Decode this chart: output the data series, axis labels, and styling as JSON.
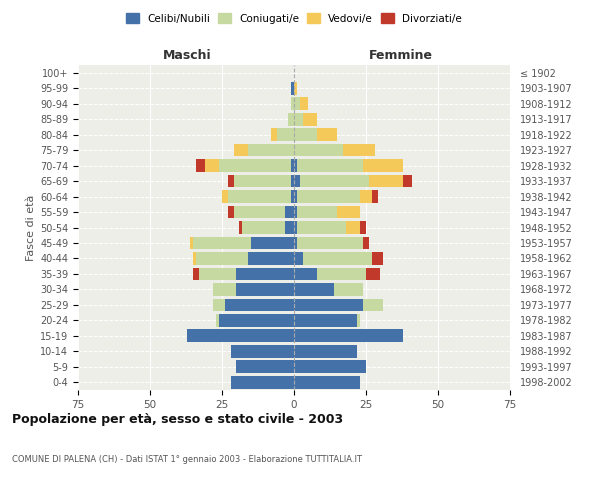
{
  "age_groups": [
    "0-4",
    "5-9",
    "10-14",
    "15-19",
    "20-24",
    "25-29",
    "30-34",
    "35-39",
    "40-44",
    "45-49",
    "50-54",
    "55-59",
    "60-64",
    "65-69",
    "70-74",
    "75-79",
    "80-84",
    "85-89",
    "90-94",
    "95-99",
    "100+"
  ],
  "birth_years": [
    "1998-2002",
    "1993-1997",
    "1988-1992",
    "1983-1987",
    "1978-1982",
    "1973-1977",
    "1968-1972",
    "1963-1967",
    "1958-1962",
    "1953-1957",
    "1948-1952",
    "1943-1947",
    "1938-1942",
    "1933-1937",
    "1928-1932",
    "1923-1927",
    "1918-1922",
    "1913-1917",
    "1908-1912",
    "1903-1907",
    "≤ 1902"
  ],
  "males": {
    "celibi": [
      22,
      20,
      22,
      37,
      26,
      24,
      20,
      20,
      16,
      15,
      3,
      3,
      1,
      1,
      1,
      0,
      0,
      0,
      0,
      1,
      0
    ],
    "coniugati": [
      0,
      0,
      0,
      0,
      1,
      4,
      8,
      13,
      18,
      20,
      15,
      18,
      22,
      20,
      25,
      16,
      6,
      2,
      1,
      0,
      0
    ],
    "vedovi": [
      0,
      0,
      0,
      0,
      0,
      0,
      0,
      0,
      1,
      1,
      0,
      0,
      2,
      0,
      5,
      5,
      2,
      0,
      0,
      0,
      0
    ],
    "divorziati": [
      0,
      0,
      0,
      0,
      0,
      0,
      0,
      2,
      0,
      0,
      1,
      2,
      0,
      2,
      3,
      0,
      0,
      0,
      0,
      0,
      0
    ]
  },
  "females": {
    "nubili": [
      23,
      25,
      22,
      38,
      22,
      24,
      14,
      8,
      3,
      1,
      1,
      1,
      1,
      2,
      1,
      0,
      0,
      0,
      0,
      0,
      0
    ],
    "coniugate": [
      0,
      0,
      0,
      0,
      1,
      7,
      10,
      17,
      24,
      23,
      17,
      14,
      22,
      24,
      23,
      17,
      8,
      3,
      2,
      0,
      0
    ],
    "vedove": [
      0,
      0,
      0,
      0,
      0,
      0,
      0,
      0,
      0,
      0,
      5,
      8,
      4,
      12,
      14,
      11,
      7,
      5,
      3,
      1,
      0
    ],
    "divorziate": [
      0,
      0,
      0,
      0,
      0,
      0,
      0,
      5,
      4,
      2,
      2,
      0,
      2,
      3,
      0,
      0,
      0,
      0,
      0,
      0,
      0
    ]
  },
  "colors": {
    "celibi": "#4472a8",
    "coniugati": "#c5d9a0",
    "vedovi": "#f5c85a",
    "divorziati": "#c0392b"
  },
  "title": "Popolazione per età, sesso e stato civile - 2003",
  "subtitle": "COMUNE DI PALENA (CH) - Dati ISTAT 1° gennaio 2003 - Elaborazione TUTTITALIA.IT",
  "xlabel_left": "Maschi",
  "xlabel_right": "Femmine",
  "ylabel_left": "Fasce di età",
  "xlim": 75,
  "bg_color": "#eeeee8",
  "legend_labels": [
    "Celibi/Nubili",
    "Coniugati/e",
    "Vedovi/e",
    "Divorziati/e"
  ]
}
